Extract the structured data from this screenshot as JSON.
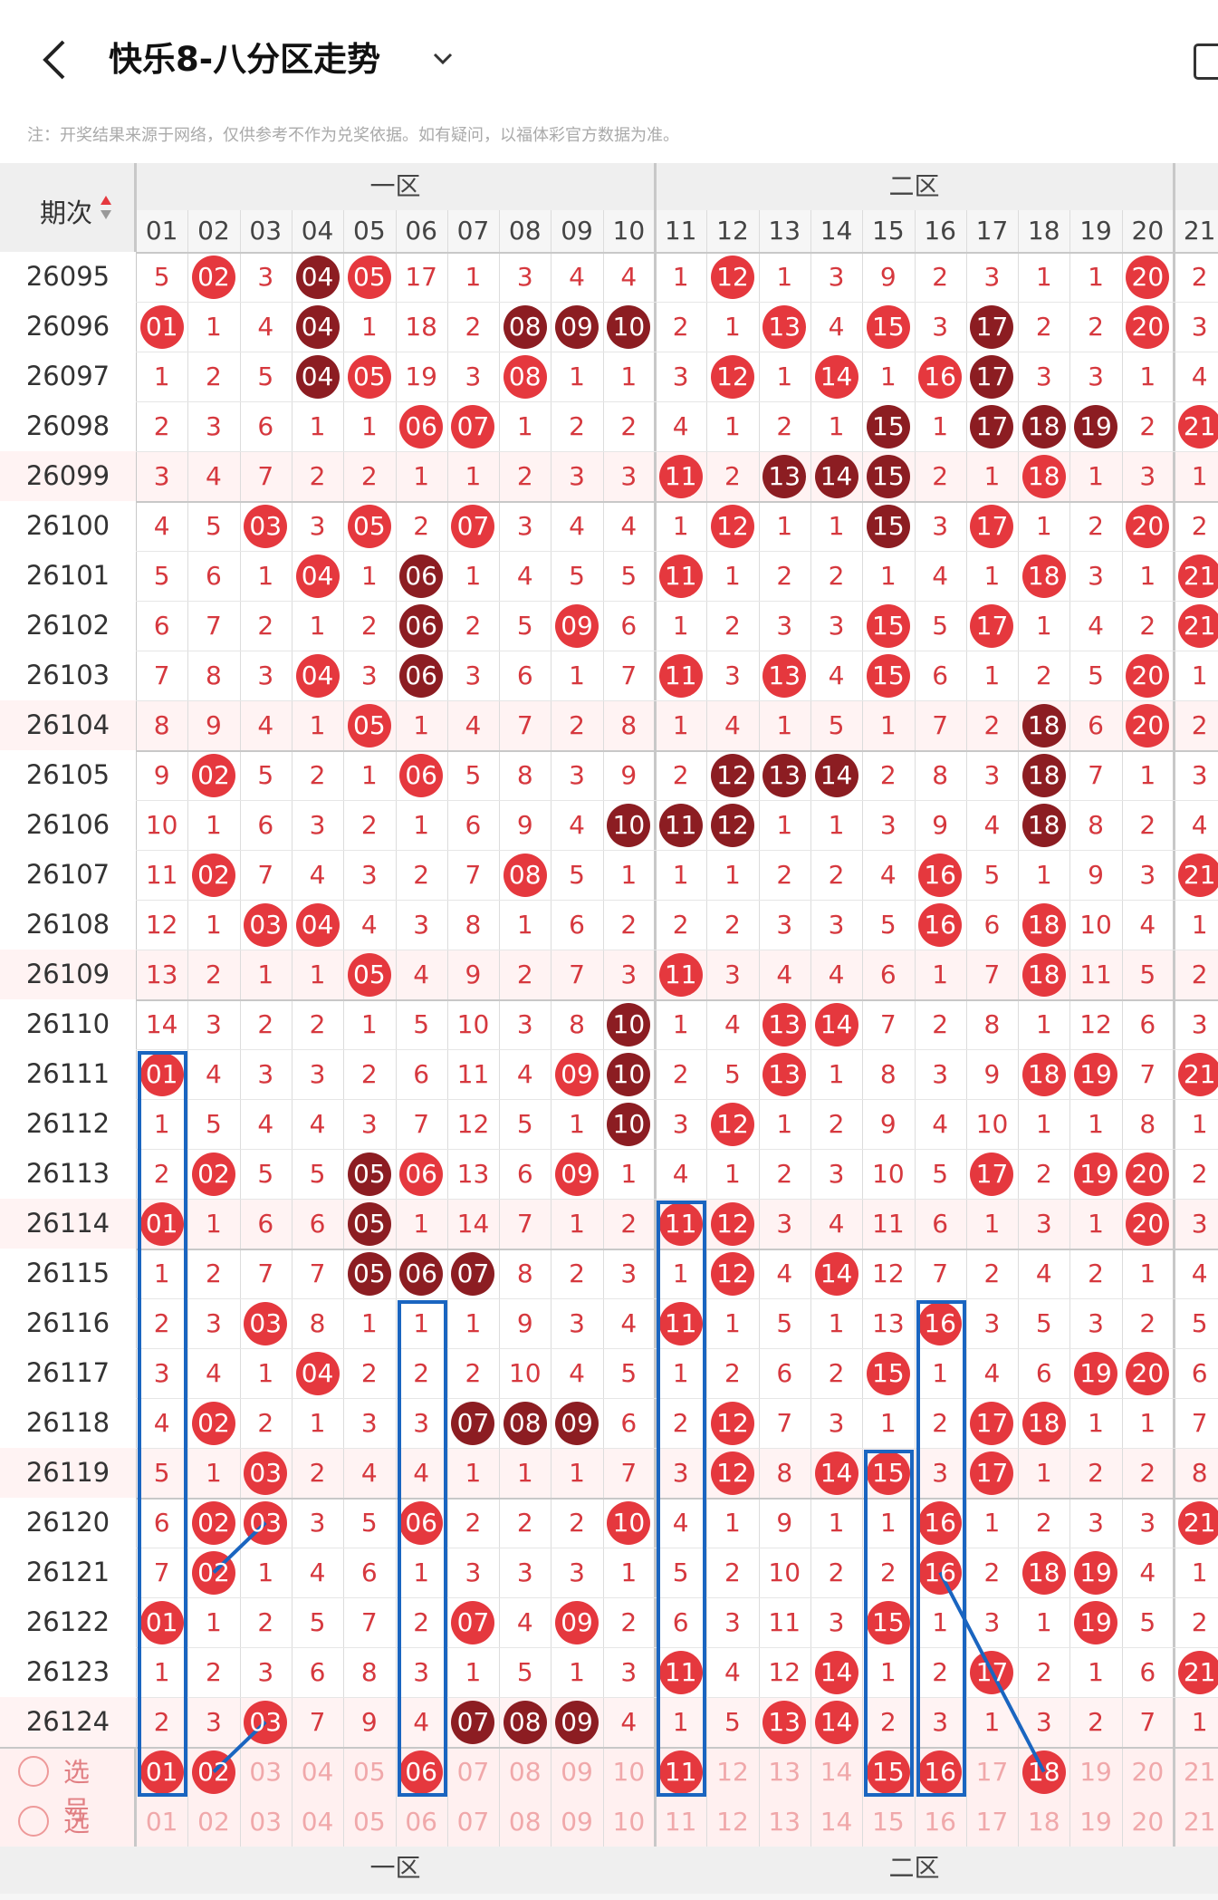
{
  "header": {
    "title": "快乐8-八分区走势"
  },
  "notice": "注：开奖结果来源于网络，仅供参考不作为兑奖依据。如有疑问，以福体彩官方数据为准。",
  "table": {
    "period_header": "期次",
    "zones": [
      "一区",
      "二区"
    ],
    "columns": [
      "01",
      "02",
      "03",
      "04",
      "05",
      "06",
      "07",
      "08",
      "09",
      "10",
      "11",
      "12",
      "13",
      "14",
      "15",
      "16",
      "17",
      "18",
      "19",
      "20",
      "21"
    ],
    "rows": [
      {
        "p": "26095",
        "c": [
          "5",
          "02",
          "3",
          "04",
          "05",
          "17",
          "1",
          "3",
          "4",
          "4",
          "1",
          "12",
          "1",
          "3",
          "9",
          "2",
          "3",
          "1",
          "1",
          "20",
          "2"
        ]
      },
      {
        "p": "26096",
        "c": [
          "01",
          "1",
          "4",
          "04",
          "1",
          "18",
          "2",
          "08",
          "09",
          "10",
          "2",
          "1",
          "13",
          "4",
          "15",
          "3",
          "17",
          "2",
          "2",
          "20",
          "3"
        ]
      },
      {
        "p": "26097",
        "c": [
          "1",
          "2",
          "5",
          "04",
          "05",
          "19",
          "3",
          "08",
          "1",
          "1",
          "3",
          "12",
          "1",
          "14",
          "1",
          "16",
          "17",
          "3",
          "3",
          "1",
          "4"
        ]
      },
      {
        "p": "26098",
        "c": [
          "2",
          "3",
          "6",
          "1",
          "1",
          "06",
          "07",
          "1",
          "2",
          "2",
          "4",
          "1",
          "2",
          "1",
          "15",
          "1",
          "17",
          "18",
          "19",
          "2",
          "21"
        ]
      },
      {
        "p": "26099",
        "c": [
          "3",
          "4",
          "7",
          "2",
          "2",
          "1",
          "1",
          "2",
          "3",
          "3",
          "11",
          "2",
          "13",
          "14",
          "15",
          "2",
          "1",
          "18",
          "1",
          "3",
          "1"
        ]
      },
      {
        "p": "26100",
        "c": [
          "4",
          "5",
          "03",
          "3",
          "05",
          "2",
          "07",
          "3",
          "4",
          "4",
          "1",
          "12",
          "1",
          "1",
          "15",
          "3",
          "17",
          "1",
          "2",
          "20",
          "2"
        ]
      },
      {
        "p": "26101",
        "c": [
          "5",
          "6",
          "1",
          "04",
          "1",
          "06",
          "1",
          "4",
          "5",
          "5",
          "11",
          "1",
          "2",
          "2",
          "1",
          "4",
          "1",
          "18",
          "3",
          "1",
          "21"
        ]
      },
      {
        "p": "26102",
        "c": [
          "6",
          "7",
          "2",
          "1",
          "2",
          "06",
          "2",
          "5",
          "09",
          "6",
          "1",
          "2",
          "3",
          "3",
          "15",
          "5",
          "17",
          "1",
          "4",
          "2",
          "21"
        ]
      },
      {
        "p": "26103",
        "c": [
          "7",
          "8",
          "3",
          "04",
          "3",
          "06",
          "3",
          "6",
          "1",
          "7",
          "11",
          "3",
          "13",
          "4",
          "15",
          "6",
          "1",
          "2",
          "5",
          "20",
          "1"
        ]
      },
      {
        "p": "26104",
        "c": [
          "8",
          "9",
          "4",
          "1",
          "05",
          "1",
          "4",
          "7",
          "2",
          "8",
          "1",
          "4",
          "1",
          "5",
          "1",
          "7",
          "2",
          "18",
          "6",
          "20",
          "2"
        ]
      },
      {
        "p": "26105",
        "c": [
          "9",
          "02",
          "5",
          "2",
          "1",
          "06",
          "5",
          "8",
          "3",
          "9",
          "2",
          "12",
          "13",
          "14",
          "2",
          "8",
          "3",
          "18",
          "7",
          "1",
          "3"
        ]
      },
      {
        "p": "26106",
        "c": [
          "10",
          "1",
          "6",
          "3",
          "2",
          "1",
          "6",
          "9",
          "4",
          "10",
          "11",
          "12",
          "1",
          "1",
          "3",
          "9",
          "4",
          "18",
          "8",
          "2",
          "4"
        ]
      },
      {
        "p": "26107",
        "c": [
          "11",
          "02",
          "7",
          "4",
          "3",
          "2",
          "7",
          "08",
          "5",
          "1",
          "1",
          "1",
          "2",
          "2",
          "4",
          "16",
          "5",
          "1",
          "9",
          "3",
          "21"
        ]
      },
      {
        "p": "26108",
        "c": [
          "12",
          "1",
          "03",
          "04",
          "4",
          "3",
          "8",
          "1",
          "6",
          "2",
          "2",
          "2",
          "3",
          "3",
          "5",
          "16",
          "6",
          "18",
          "10",
          "4",
          "1"
        ]
      },
      {
        "p": "26109",
        "c": [
          "13",
          "2",
          "1",
          "1",
          "05",
          "4",
          "9",
          "2",
          "7",
          "3",
          "11",
          "3",
          "4",
          "4",
          "6",
          "1",
          "7",
          "18",
          "11",
          "5",
          "2"
        ]
      },
      {
        "p": "26110",
        "c": [
          "14",
          "3",
          "2",
          "2",
          "1",
          "5",
          "10",
          "3",
          "8",
          "10",
          "1",
          "4",
          "13",
          "14",
          "7",
          "2",
          "8",
          "1",
          "12",
          "6",
          "3"
        ]
      },
      {
        "p": "26111",
        "c": [
          "01",
          "4",
          "3",
          "3",
          "2",
          "6",
          "11",
          "4",
          "09",
          "10",
          "2",
          "5",
          "13",
          "1",
          "8",
          "3",
          "9",
          "18",
          "19",
          "7",
          "21"
        ]
      },
      {
        "p": "26112",
        "c": [
          "1",
          "5",
          "4",
          "4",
          "3",
          "7",
          "12",
          "5",
          "1",
          "10",
          "3",
          "12",
          "1",
          "2",
          "9",
          "4",
          "10",
          "1",
          "1",
          "8",
          "1"
        ]
      },
      {
        "p": "26113",
        "c": [
          "2",
          "02",
          "5",
          "5",
          "05",
          "06",
          "13",
          "6",
          "09",
          "1",
          "4",
          "1",
          "2",
          "3",
          "10",
          "5",
          "17",
          "2",
          "19",
          "20",
          "2"
        ]
      },
      {
        "p": "26114",
        "c": [
          "01",
          "1",
          "6",
          "6",
          "05",
          "1",
          "14",
          "7",
          "1",
          "2",
          "11",
          "12",
          "3",
          "4",
          "11",
          "6",
          "1",
          "3",
          "1",
          "20",
          "3"
        ]
      },
      {
        "p": "26115",
        "c": [
          "1",
          "2",
          "7",
          "7",
          "05",
          "06",
          "07",
          "8",
          "2",
          "3",
          "1",
          "12",
          "4",
          "14",
          "12",
          "7",
          "2",
          "4",
          "2",
          "1",
          "4"
        ]
      },
      {
        "p": "26116",
        "c": [
          "2",
          "3",
          "03",
          "8",
          "1",
          "1",
          "1",
          "9",
          "3",
          "4",
          "11",
          "1",
          "5",
          "1",
          "13",
          "16",
          "3",
          "5",
          "3",
          "2",
          "5"
        ]
      },
      {
        "p": "26117",
        "c": [
          "3",
          "4",
          "1",
          "04",
          "2",
          "2",
          "2",
          "10",
          "4",
          "5",
          "1",
          "2",
          "6",
          "2",
          "15",
          "1",
          "4",
          "6",
          "19",
          "20",
          "6"
        ]
      },
      {
        "p": "26118",
        "c": [
          "4",
          "02",
          "2",
          "1",
          "3",
          "3",
          "07",
          "08",
          "09",
          "6",
          "2",
          "12",
          "7",
          "3",
          "1",
          "2",
          "17",
          "18",
          "1",
          "1",
          "7"
        ]
      },
      {
        "p": "26119",
        "c": [
          "5",
          "1",
          "03",
          "2",
          "4",
          "4",
          "1",
          "1",
          "1",
          "7",
          "3",
          "12",
          "8",
          "14",
          "15",
          "3",
          "17",
          "1",
          "2",
          "2",
          "8"
        ]
      },
      {
        "p": "26120",
        "c": [
          "6",
          "02",
          "03",
          "3",
          "5",
          "06",
          "2",
          "2",
          "2",
          "10",
          "4",
          "1",
          "9",
          "1",
          "1",
          "16",
          "1",
          "2",
          "3",
          "3",
          "21"
        ]
      },
      {
        "p": "26121",
        "c": [
          "7",
          "02",
          "1",
          "4",
          "6",
          "1",
          "3",
          "3",
          "3",
          "1",
          "5",
          "2",
          "10",
          "2",
          "2",
          "16",
          "2",
          "18",
          "19",
          "4",
          "1"
        ]
      },
      {
        "p": "26122",
        "c": [
          "01",
          "1",
          "2",
          "5",
          "7",
          "2",
          "07",
          "4",
          "09",
          "2",
          "6",
          "3",
          "11",
          "3",
          "15",
          "1",
          "3",
          "1",
          "19",
          "5",
          "2"
        ]
      },
      {
        "p": "26123",
        "c": [
          "1",
          "2",
          "3",
          "6",
          "8",
          "3",
          "1",
          "5",
          "1",
          "3",
          "11",
          "4",
          "12",
          "14",
          "1",
          "2",
          "17",
          "2",
          "1",
          "6",
          "21"
        ]
      },
      {
        "p": "26124",
        "c": [
          "2",
          "3",
          "03",
          "7",
          "9",
          "4",
          "07",
          "08",
          "09",
          "4",
          "1",
          "5",
          "13",
          "14",
          "2",
          "3",
          "1",
          "3",
          "2",
          "7",
          "1"
        ]
      }
    ],
    "select_label": "选号",
    "select_row1": [
      "01",
      "02",
      "03",
      "04",
      "05",
      "06",
      "07",
      "08",
      "09",
      "10",
      "11",
      "12",
      "13",
      "14",
      "15",
      "16",
      "17",
      "18",
      "19",
      "20",
      "21"
    ],
    "select_row2": [
      "01",
      "02",
      "03",
      "04",
      "05",
      "06",
      "07",
      "08",
      "09",
      "10",
      "11",
      "12",
      "13",
      "14",
      "15",
      "16",
      "17",
      "18",
      "19",
      "20",
      "21"
    ]
  },
  "colors": {
    "ball": "#e5383e",
    "ball_dark": "#8c1d22",
    "text": "#d6383e",
    "box": "#1a65c0"
  }
}
